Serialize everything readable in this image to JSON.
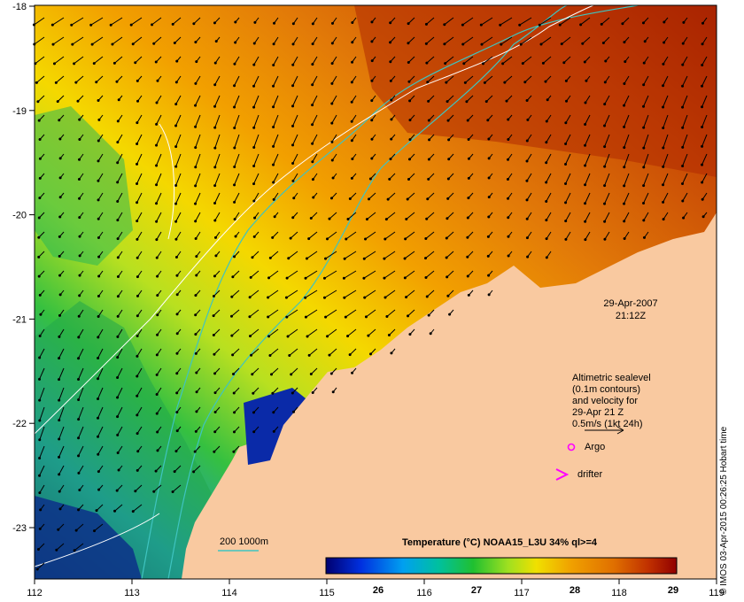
{
  "date_label": "29-Apr-2007",
  "time_label": "21:12Z",
  "legend": {
    "altimetry_lines": [
      "Altimetric sealevel",
      "(0.1m contours)",
      "and velocity for",
      "29-Apr 21 Z",
      "0.5m/s (1kt 24h)"
    ],
    "argo_label": "Argo",
    "drifter_label": "drifter"
  },
  "depth_contour_label": "200  1000m",
  "colorbar": {
    "title": "Temperature (°C) NOAA15_L3U 34% ql>=4",
    "ticks": [
      "26",
      "27",
      "28",
      "29"
    ]
  },
  "axes": {
    "lon_ticks": [
      "112",
      "113",
      "114",
      "115",
      "116",
      "117",
      "118",
      "119"
    ],
    "lat_ticks": [
      "-18",
      "-19",
      "-20",
      "-21",
      "-22",
      "-23"
    ]
  },
  "credit": "© IMOS 03-Apr-2015 00:26:25 Hobart time",
  "colors": {
    "land": "#f9c9a0",
    "depth_contour": "#3fc4c0",
    "sealevel_contour": "#ffffff",
    "argo_marker": "#ff00ff",
    "drifter_marker": "#ff00ff"
  }
}
